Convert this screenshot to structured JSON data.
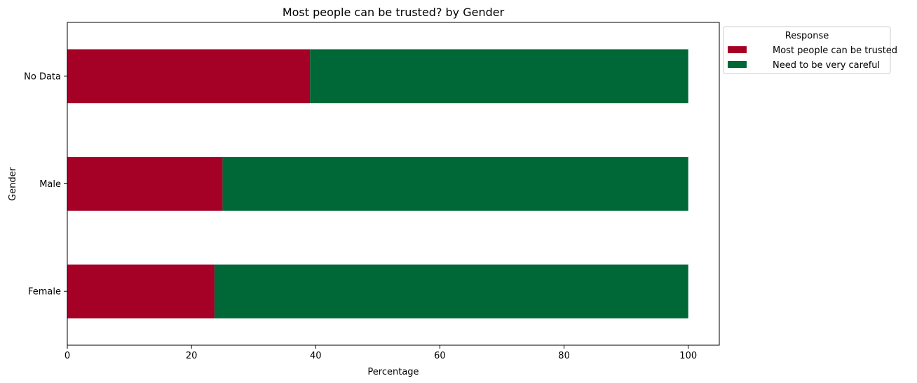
{
  "chart_data": {
    "type": "bar",
    "orientation": "horizontal",
    "stacked": true,
    "title": "Most people can be trusted? by Gender",
    "xlabel": "Percentage",
    "ylabel": "Gender",
    "categories": [
      "Female",
      "Male",
      "No Data"
    ],
    "series": [
      {
        "name": "Most people can be trusted",
        "color": "#a50026",
        "values": [
          23.7,
          25.0,
          39.1
        ]
      },
      {
        "name": "Need to be very careful",
        "color": "#006837",
        "values": [
          76.3,
          75.0,
          60.9
        ]
      }
    ],
    "xlim": [
      0,
      105
    ],
    "xticks": [
      0,
      20,
      40,
      60,
      80,
      100
    ],
    "grid": false,
    "legend": {
      "title": "Response",
      "placement": "outside-top-right"
    }
  }
}
